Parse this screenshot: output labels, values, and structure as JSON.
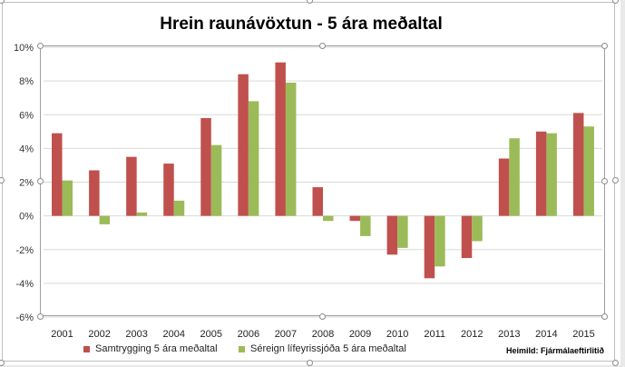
{
  "chart_data": {
    "type": "bar",
    "title": "Hrein raunávöxtun - 5 ára meðaltal",
    "categories": [
      "2001",
      "2002",
      "2003",
      "2004",
      "2005",
      "2006",
      "2007",
      "2008",
      "2009",
      "2010",
      "2011",
      "2012",
      "2013",
      "2014",
      "2015"
    ],
    "series": [
      {
        "name": "Samtrygging 5 ára meðaltal",
        "color": "#c0504d",
        "values": [
          4.9,
          2.7,
          3.5,
          3.1,
          5.8,
          8.4,
          9.1,
          1.7,
          -0.3,
          -2.3,
          -3.7,
          -2.5,
          3.4,
          5.0,
          6.1
        ]
      },
      {
        "name": "Séreign lífeyrissjóða 5 ára meðaltal",
        "color": "#9bbb59",
        "values": [
          2.1,
          -0.5,
          0.2,
          0.9,
          4.2,
          6.8,
          7.9,
          -0.3,
          -1.2,
          -1.9,
          -3.0,
          -1.5,
          4.6,
          4.9,
          5.3
        ]
      }
    ],
    "ylim": [
      -6,
      10
    ],
    "yticks": [
      "-6%",
      "-4%",
      "-2%",
      "0%",
      "2%",
      "4%",
      "6%",
      "8%",
      "10%"
    ],
    "grid": true,
    "legend": "bottom"
  },
  "source_note": "Heimild: Fjármálaeftirlitið"
}
